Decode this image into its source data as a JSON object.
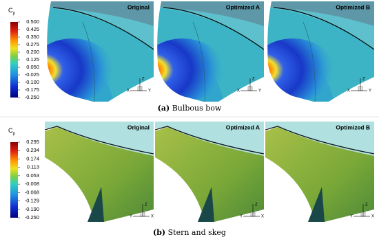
{
  "panels": [
    {
      "images": [
        "Original",
        "Optimized A",
        "Optimized B"
      ],
      "colorbar": {
        "label": "C",
        "subscript": "p",
        "ticks": [
          "0.500",
          "0.425",
          "0.350",
          "0.275",
          "0.200",
          "0.125",
          "0.050",
          "-0.025",
          "-0.100",
          "-0.175",
          "-0.250"
        ]
      },
      "axes": [
        "Z",
        "X",
        "Y"
      ],
      "caption": {
        "letter": "(a)",
        "text": "Bulbous bow"
      }
    },
    {
      "images": [
        "Original",
        "Optimized A",
        "Optimized B"
      ],
      "colorbar": {
        "label": "C",
        "subscript": "p",
        "ticks": [
          "0.295",
          "0.234",
          "0.174",
          "0.113",
          "0.053",
          "-0.008",
          "-0.068",
          "-0.129",
          "-0.190",
          "-0.250"
        ]
      },
      "axes": [
        "Z",
        "Y",
        "X"
      ],
      "caption": {
        "letter": "(b)",
        "text": "Stern and skeg"
      }
    }
  ]
}
